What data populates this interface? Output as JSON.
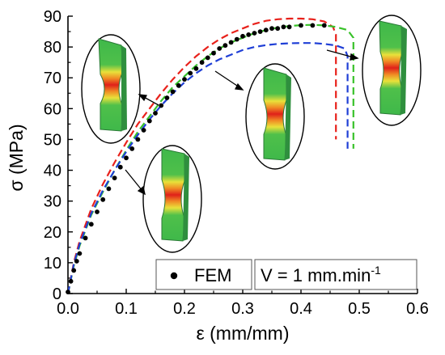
{
  "chart_data": {
    "type": "line",
    "xlabel": "ε (mm/mm)",
    "ylabel": "σ (MPa)",
    "xlim": [
      0,
      0.6
    ],
    "ylim": [
      0,
      90
    ],
    "x_ticks": [
      "0.0",
      "0.1",
      "0.2",
      "0.3",
      "0.4",
      "0.5",
      "0.6"
    ],
    "y_ticks": [
      "0",
      "10",
      "20",
      "30",
      "40",
      "50",
      "60",
      "70",
      "80",
      "90"
    ],
    "grid": false,
    "legend_position": "bottom-right",
    "legend": {
      "series_label": "FEM",
      "condition_label": "V = 1 mm.min",
      "condition_superscript": "-1"
    },
    "series": [
      {
        "name": "FEM",
        "style": "dots",
        "color": "#000000",
        "x": [
          0.0,
          0.005,
          0.01,
          0.015,
          0.02,
          0.03,
          0.04,
          0.05,
          0.06,
          0.07,
          0.08,
          0.09,
          0.1,
          0.11,
          0.12,
          0.13,
          0.14,
          0.15,
          0.16,
          0.17,
          0.18,
          0.19,
          0.2,
          0.21,
          0.22,
          0.23,
          0.24,
          0.25,
          0.26,
          0.27,
          0.28,
          0.29,
          0.3,
          0.31,
          0.32,
          0.33,
          0.34,
          0.35,
          0.36,
          0.37,
          0.38,
          0.4,
          0.42,
          0.44
        ],
        "y": [
          0.5,
          4,
          7.5,
          10.5,
          13,
          18,
          22.5,
          26.5,
          30.5,
          34,
          37.5,
          41,
          44,
          47,
          50,
          53,
          56,
          58.5,
          61,
          63.5,
          65.5,
          67.5,
          69.5,
          71.5,
          73,
          75,
          76.5,
          78,
          79.5,
          80.5,
          81.5,
          82.5,
          83.5,
          84,
          84.5,
          85,
          85.5,
          86,
          86,
          86.5,
          86.5,
          87,
          87,
          87
        ]
      },
      {
        "name": "",
        "style": "dashed",
        "color": "#e8211b",
        "x": [
          0.0,
          0.01,
          0.02,
          0.04,
          0.06,
          0.08,
          0.1,
          0.12,
          0.14,
          0.16,
          0.18,
          0.2,
          0.22,
          0.24,
          0.26,
          0.28,
          0.3,
          0.32,
          0.34,
          0.36,
          0.38,
          0.4,
          0.42,
          0.44,
          0.455,
          0.46,
          0.46,
          0.46
        ],
        "y": [
          0,
          10,
          17,
          27.5,
          35.5,
          42.5,
          49,
          55,
          60,
          65,
          69.5,
          73.5,
          77,
          80,
          82.5,
          84.5,
          86,
          87.5,
          88.5,
          89,
          89.2,
          89.2,
          89,
          88.3,
          86.5,
          84,
          60,
          50
        ]
      },
      {
        "name": "",
        "style": "dashed",
        "color": "#39c22a",
        "x": [
          0.0,
          0.01,
          0.02,
          0.04,
          0.06,
          0.08,
          0.1,
          0.12,
          0.14,
          0.16,
          0.18,
          0.2,
          0.22,
          0.24,
          0.26,
          0.28,
          0.3,
          0.32,
          0.34,
          0.36,
          0.38,
          0.4,
          0.42,
          0.44,
          0.46,
          0.48,
          0.49,
          0.49,
          0.49
        ],
        "y": [
          0,
          9,
          15.5,
          25.5,
          33,
          40,
          46.5,
          52.5,
          57.5,
          62.5,
          67,
          70.5,
          74,
          77,
          79.5,
          81.5,
          83,
          84.5,
          85.5,
          86.3,
          86.8,
          87.1,
          87.2,
          87,
          86.5,
          85.5,
          83,
          60,
          47
        ]
      },
      {
        "name": "",
        "style": "dashed",
        "color": "#1f3fd6",
        "x": [
          0.0,
          0.01,
          0.02,
          0.04,
          0.06,
          0.08,
          0.1,
          0.12,
          0.14,
          0.16,
          0.18,
          0.2,
          0.22,
          0.24,
          0.26,
          0.28,
          0.3,
          0.32,
          0.34,
          0.36,
          0.38,
          0.4,
          0.42,
          0.44,
          0.46,
          0.475,
          0.48,
          0.48,
          0.48
        ],
        "y": [
          0,
          9.5,
          16,
          26,
          33.5,
          40,
          46,
          51.5,
          56.5,
          61,
          65,
          68.5,
          71.5,
          74,
          76,
          77.5,
          79,
          80,
          80.6,
          81,
          81.2,
          81.3,
          81.3,
          81,
          80.5,
          79.5,
          77,
          60,
          47
        ]
      }
    ]
  },
  "insets": [
    {
      "name": "specimen-inset-1",
      "stage": "necking"
    },
    {
      "name": "specimen-inset-2",
      "stage": "early"
    },
    {
      "name": "specimen-inset-3",
      "stage": "mid"
    },
    {
      "name": "specimen-inset-4",
      "stage": "fracture"
    }
  ],
  "colors": {
    "specimen_green": "#3fb84a",
    "specimen_edge": "#2b7a37",
    "stress_yellow": "#e9e13a",
    "stress_orange": "#f08a24",
    "stress_red": "#e0201a",
    "stress_blue": "#2b51d8"
  }
}
